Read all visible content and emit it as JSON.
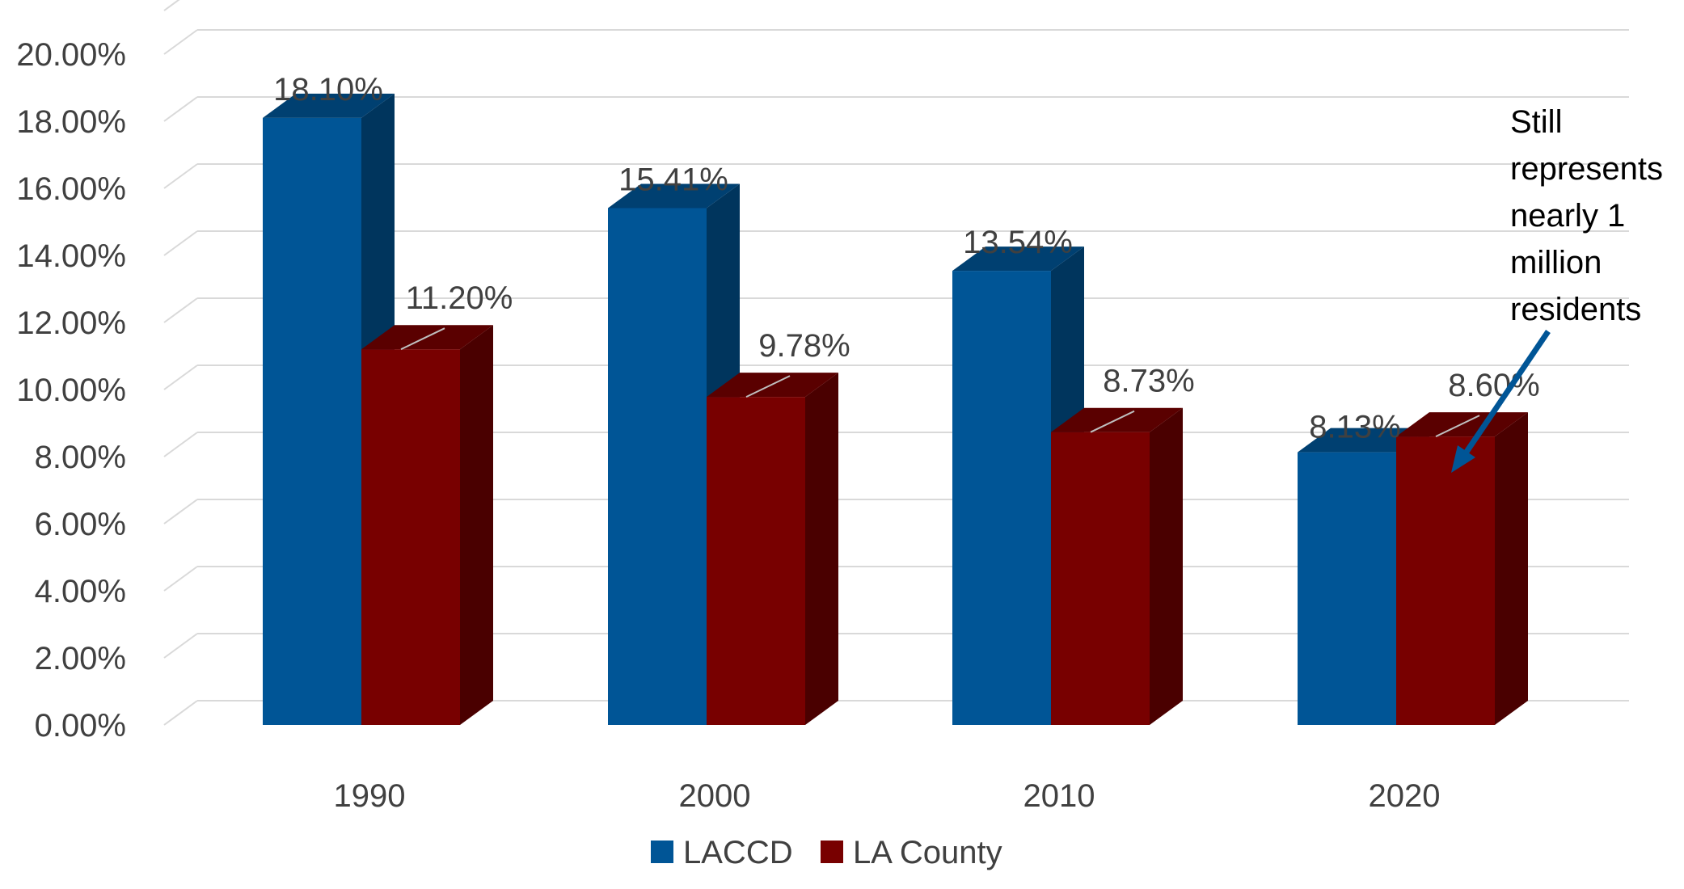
{
  "chart_data": {
    "type": "bar",
    "categories": [
      "1990",
      "2000",
      "2010",
      "2020"
    ],
    "series": [
      {
        "name": "LACCD",
        "color": "#005596",
        "values": [
          18.1,
          15.41,
          13.54,
          8.13
        ],
        "labels": [
          "18.10%",
          "15.41%",
          "13.54%",
          "8.13%"
        ]
      },
      {
        "name": "LA County",
        "color": "#780000",
        "values": [
          11.2,
          9.78,
          8.73,
          8.6
        ],
        "labels": [
          "11.20%",
          "9.78%",
          "8.73%",
          "8.60%"
        ]
      }
    ],
    "y_ticks": [
      "0.00%",
      "2.00%",
      "4.00%",
      "6.00%",
      "8.00%",
      "10.00%",
      "12.00%",
      "14.00%",
      "16.00%",
      "18.00%",
      "20.00%"
    ],
    "ylim": [
      0,
      20
    ],
    "grid": true,
    "three_d": true,
    "legend_position": "bottom",
    "annotation": {
      "lines": [
        "Still",
        "represents",
        "nearly 1",
        "million",
        "residents"
      ],
      "arrow_color": "#005596",
      "target_category": "2020",
      "target_series": "LA County"
    }
  }
}
